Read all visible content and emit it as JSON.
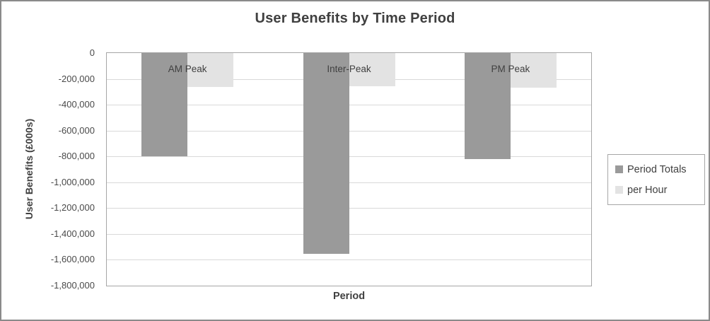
{
  "chart": {
    "title": "User Benefits by Time Period",
    "y_axis_title": "User Benefits (£000s)",
    "x_axis_title": "Period"
  },
  "chart_data": {
    "type": "bar",
    "title": "User Benefits by Time Period",
    "xlabel": "Period",
    "ylabel": "User Benefits (£000s)",
    "categories": [
      "AM Peak",
      "Inter-Peak",
      "PM Peak"
    ],
    "series": [
      {
        "name": "Period Totals",
        "color": "#9a9a9a",
        "values": [
          -800000,
          -1555000,
          -820000
        ]
      },
      {
        "name": "per Hour",
        "color": "#e3e3e3",
        "values": [
          -260000,
          -255000,
          -270000
        ]
      }
    ],
    "ylim": [
      -1800000,
      0
    ],
    "yticks": [
      0,
      -200000,
      -400000,
      -600000,
      -800000,
      -1000000,
      -1200000,
      -1400000,
      -1600000,
      -1800000
    ],
    "ytick_labels": [
      "0",
      "-200,000",
      "-400,000",
      "-600,000",
      "-800,000",
      "-1,000,000",
      "-1,200,000",
      "-1,400,000",
      "-1,600,000",
      "-1,800,000"
    ],
    "grid": true,
    "legend_position": "right",
    "colors": {
      "plot_border": "#a6a6a6",
      "gridline": "#d9d9d9",
      "text": "#404040",
      "outer_border": "#8a8a8a"
    }
  }
}
